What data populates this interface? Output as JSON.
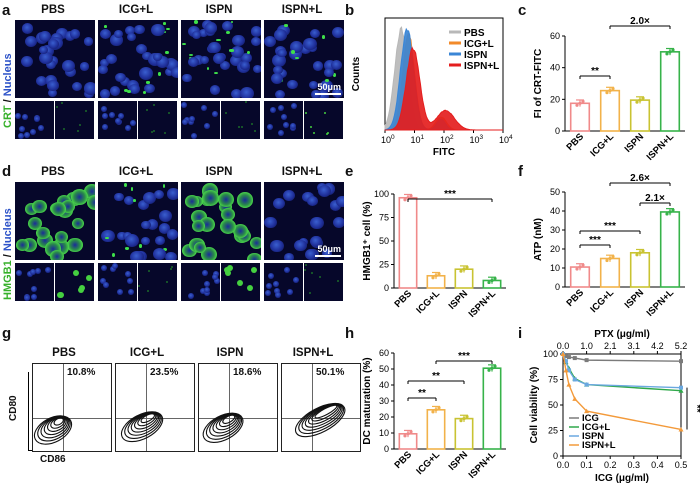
{
  "panels": {
    "a": {
      "letter": "a",
      "conditions": [
        "PBS",
        "ICG+L",
        "ISPN",
        "ISPN+L"
      ],
      "y_label_green": "CRT",
      "y_label_sep": " / ",
      "y_label_blue": "Nucleus",
      "scale_bar": "50μm"
    },
    "d": {
      "letter": "d",
      "conditions": [
        "PBS",
        "ICG+L",
        "ISPN",
        "ISPN+L"
      ],
      "y_label_green": "HMGB1",
      "y_label_sep": " / ",
      "y_label_blue": "Nucleus",
      "scale_bar": "50μm"
    },
    "g": {
      "letter": "g",
      "conditions": [
        "PBS",
        "ICG+L",
        "ISPN",
        "ISPN+L"
      ],
      "percentages": [
        "10.8%",
        "23.5%",
        "18.6%",
        "50.1%"
      ],
      "y_axis": "CD80",
      "x_axis": "CD86"
    }
  },
  "colors": {
    "PBS": "#f08a8a",
    "ICG+L": "#f2b24a",
    "ISPN": "#c9c332",
    "ISPN+L": "#37b34a",
    "hist_PBS": "#b8b8b8",
    "hist_ICG": "#f28a2a",
    "hist_ISPN": "#3a86d6",
    "hist_ISPNL": "#e41e1e"
  },
  "chart_data": [
    {
      "panel": "b",
      "type": "area",
      "xlabel": "FITC",
      "ylabel": "Counts",
      "xscale": "log",
      "x_ticks": [
        "10^0",
        "10^1",
        "10^2",
        "10^3",
        "10^4"
      ],
      "legend": [
        "PBS",
        "ICG+L",
        "ISPN",
        "ISPN+L"
      ],
      "legend_position": "top-right"
    },
    {
      "panel": "c",
      "type": "bar",
      "categories": [
        "PBS",
        "ICG+L",
        "ISPN",
        "ISPN+L"
      ],
      "values": [
        17.5,
        25.5,
        19.5,
        50
      ],
      "ylabel": "FI of CRT-FITC",
      "ylim": [
        0,
        60
      ],
      "yticks": [
        0,
        20,
        40,
        60
      ],
      "annotations": [
        {
          "from": "PBS",
          "to": "ICG+L",
          "text": "**"
        },
        {
          "from": "ICG+L",
          "to": "ISPN+L",
          "text": "2.0×"
        }
      ]
    },
    {
      "panel": "e",
      "type": "bar",
      "categories": [
        "PBS",
        "ICG+L",
        "ISPN",
        "ISPN+L"
      ],
      "values": [
        96,
        13,
        20,
        8
      ],
      "ylabel": "HMGB1⁺ cell (%)",
      "ylim": [
        0,
        100
      ],
      "yticks": [
        0,
        25,
        50,
        75,
        100
      ],
      "annotations": [
        {
          "from": "PBS",
          "to": "ISPN+L",
          "text": "***"
        }
      ]
    },
    {
      "panel": "f",
      "type": "bar",
      "categories": [
        "PBS",
        "ICG+L",
        "ISPN",
        "ISPN+L"
      ],
      "values": [
        10.5,
        15,
        18,
        39.5
      ],
      "ylabel": "ATP (nM)",
      "ylim": [
        0,
        50
      ],
      "yticks": [
        0,
        10,
        20,
        30,
        40,
        50
      ],
      "annotations": [
        {
          "from": "PBS",
          "to": "ICG+L",
          "text": "***"
        },
        {
          "from": "PBS",
          "to": "ISPN",
          "text": "***"
        },
        {
          "from": "ISPN",
          "to": "ISPN+L",
          "text": "2.1×"
        },
        {
          "from": "ICG+L",
          "to": "ISPN+L",
          "text": "2.6×"
        }
      ]
    },
    {
      "panel": "h",
      "type": "bar",
      "categories": [
        "PBS",
        "ICG+L",
        "ISPN",
        "ISPN+L"
      ],
      "values": [
        9.5,
        24.5,
        19,
        50.5
      ],
      "ylabel": "DC maturation (%)",
      "ylim": [
        0,
        60
      ],
      "yticks": [
        0,
        10,
        20,
        30,
        40,
        50,
        60
      ],
      "annotations": [
        {
          "from": "PBS",
          "to": "ICG+L",
          "text": "**"
        },
        {
          "from": "PBS",
          "to": "ISPN",
          "text": "**"
        },
        {
          "from": "ICG+L",
          "to": "ISPN+L",
          "text": "***"
        }
      ]
    },
    {
      "panel": "i",
      "type": "line",
      "xlabel": "ICG (μg/ml)",
      "x2label": "PTX (μg/ml)",
      "ylabel": "Cell viability (%)",
      "xlim": [
        0,
        0.5
      ],
      "ylim": [
        0,
        100
      ],
      "xticks": [
        0,
        0.1,
        0.2,
        0.3,
        0.4,
        0.5
      ],
      "x2ticks": [
        "0.0",
        "1.0",
        "2.1",
        "3.1",
        "4.2",
        "5.2"
      ],
      "yticks": [
        0,
        25,
        50,
        75,
        100
      ],
      "x": [
        0,
        0.0125,
        0.025,
        0.05,
        0.1,
        0.5
      ],
      "series": [
        {
          "name": "ICG",
          "values": [
            100,
            98,
            97,
            96,
            94,
            93
          ]
        },
        {
          "name": "ICG+L",
          "values": [
            100,
            92,
            86,
            76,
            70,
            64
          ]
        },
        {
          "name": "ISPN",
          "values": [
            100,
            93,
            84,
            75,
            70,
            67
          ]
        },
        {
          "name": "ISPN+L",
          "values": [
            100,
            84,
            70,
            56,
            44,
            26
          ]
        }
      ],
      "annotation": "**",
      "legend_position": "bottom-left"
    }
  ]
}
